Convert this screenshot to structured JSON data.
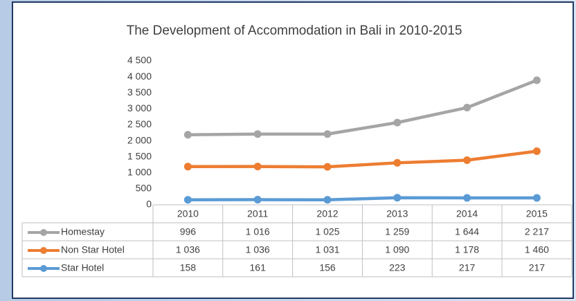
{
  "chart_data": {
    "type": "stacked-line",
    "title": "The Development of Accommodation in Bali in 2010-2015",
    "categories": [
      "2010",
      "2011",
      "2012",
      "2013",
      "2014",
      "2015"
    ],
    "series": [
      {
        "name": "Homestay",
        "color": "#a5a5a5",
        "values": [
          996,
          1016,
          1025,
          1259,
          1644,
          2217
        ],
        "value_labels": [
          "996",
          "1 016",
          "1 025",
          "1 259",
          "1 644",
          "2 217"
        ]
      },
      {
        "name": "Non Star Hotel",
        "color": "#ed7d31",
        "values": [
          1036,
          1036,
          1031,
          1090,
          1178,
          1460
        ],
        "value_labels": [
          "1 036",
          "1 036",
          "1 031",
          "1 090",
          "1 178",
          "1 460"
        ]
      },
      {
        "name": "Star Hotel",
        "color": "#5b9bd5",
        "values": [
          158,
          161,
          156,
          223,
          217,
          217
        ],
        "value_labels": [
          "158",
          "161",
          "156",
          "223",
          "217",
          "217"
        ]
      }
    ],
    "ylim": [
      0,
      4500
    ],
    "yticks": [
      0,
      500,
      {
        "value": 1000,
        "label": "1 000"
      },
      {
        "value": 1500,
        "label": "1 500"
      },
      {
        "value": 2000,
        "label": "2 000"
      },
      {
        "value": 2500,
        "label": "2 500"
      },
      {
        "value": 3000,
        "label": "3 000"
      },
      {
        "value": 3500,
        "label": "3 500"
      },
      {
        "value": 4000,
        "label": "4 000"
      },
      {
        "value": 4500,
        "label": "4 500"
      }
    ],
    "grid": false,
    "data_table": true
  }
}
